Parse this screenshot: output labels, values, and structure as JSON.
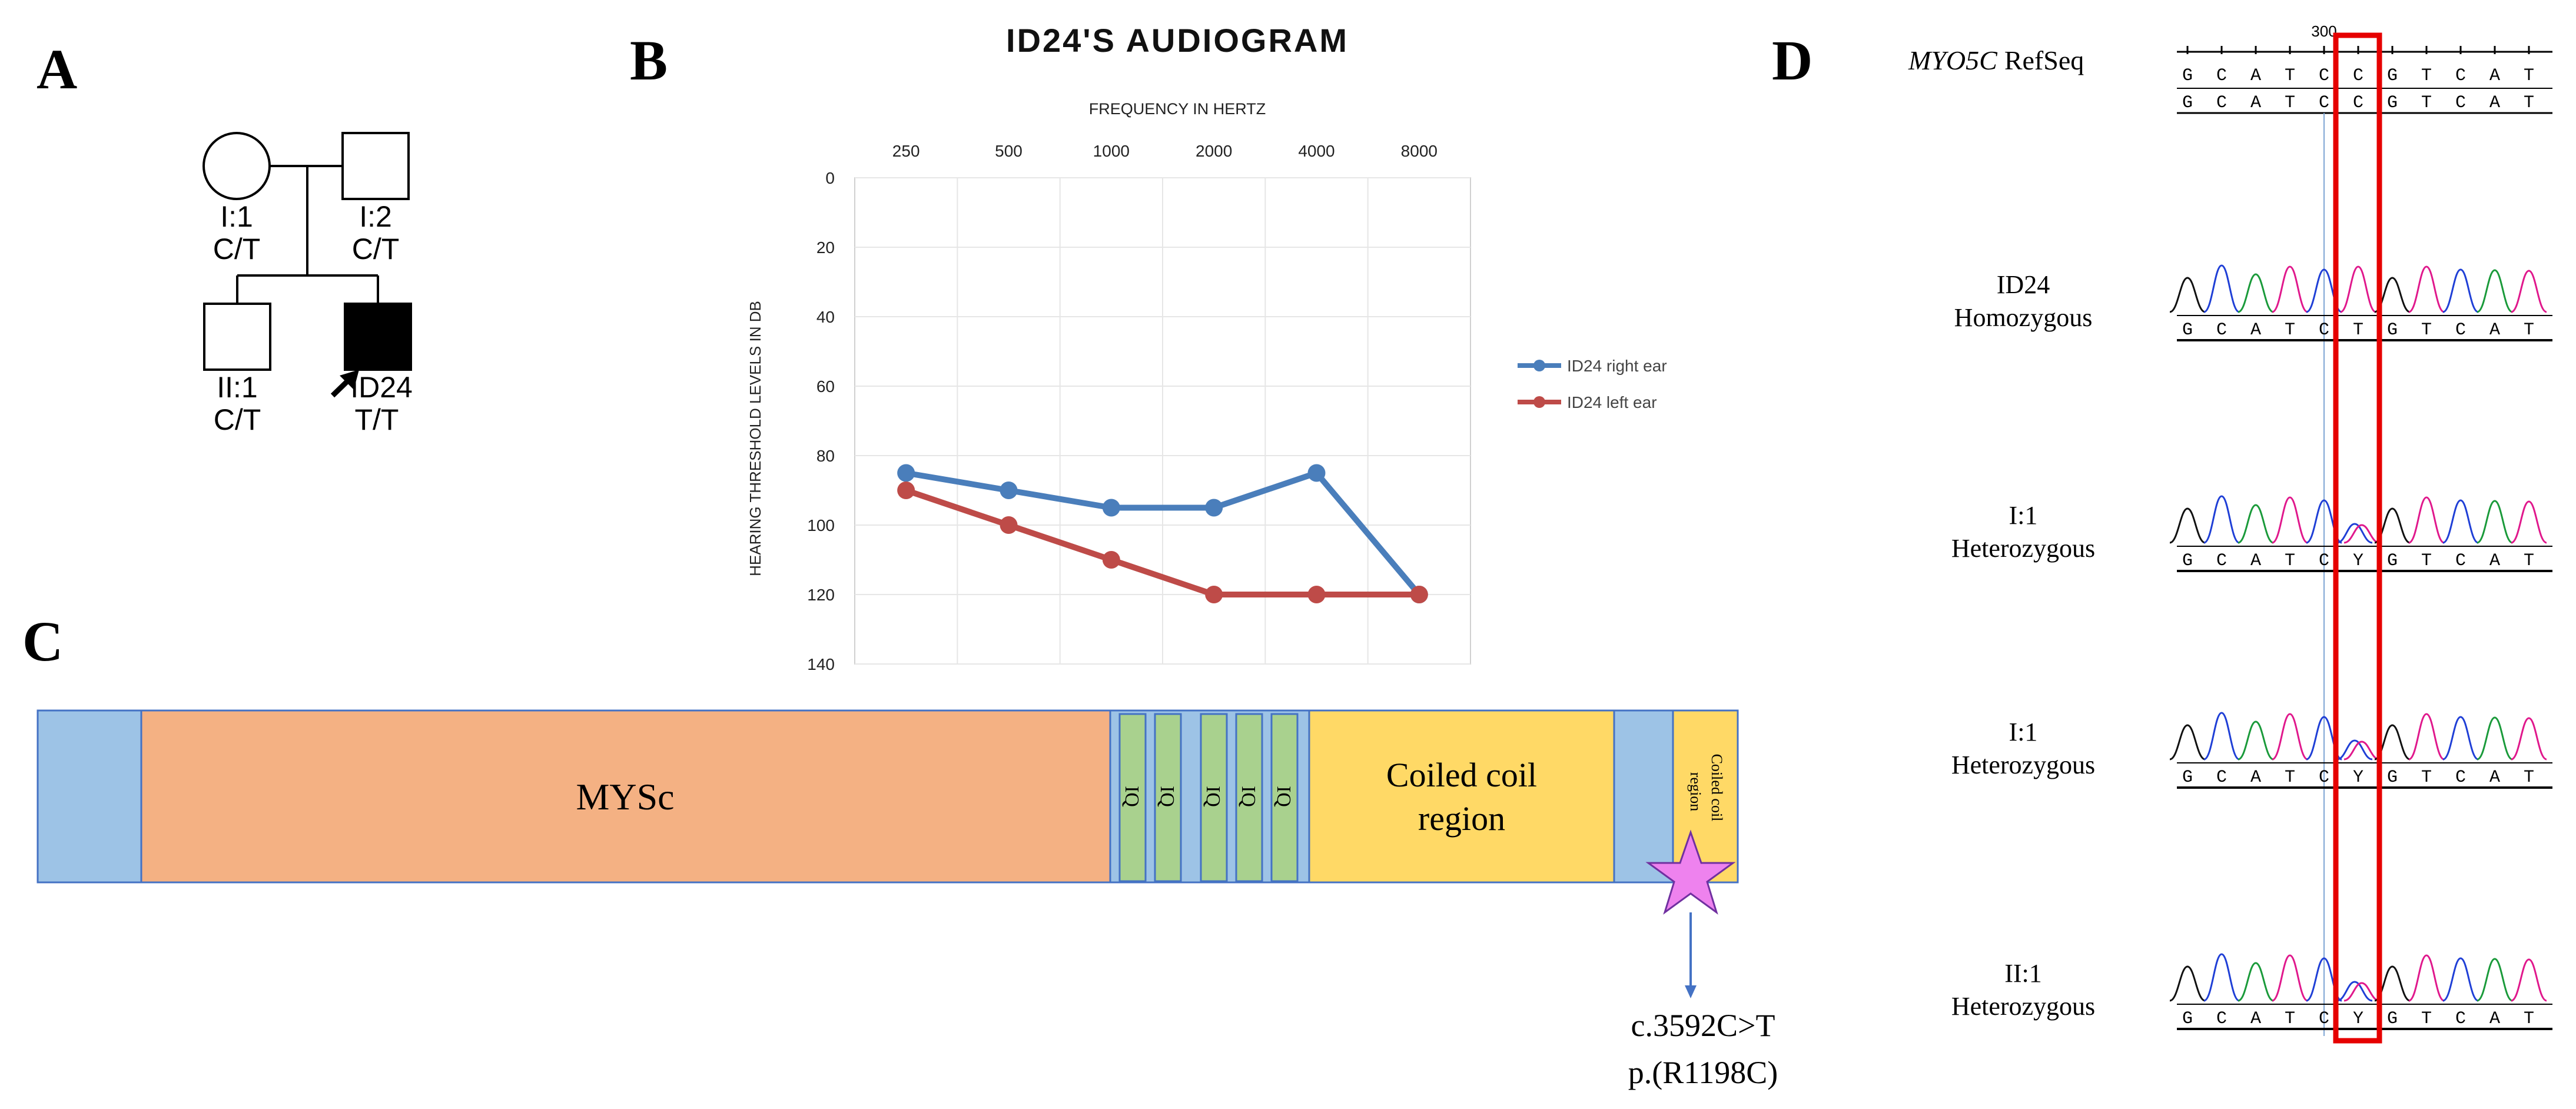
{
  "panels": {
    "A": {
      "label": "A",
      "individuals": [
        {
          "id": "I:1",
          "genotype": "C/T",
          "sex": "female",
          "affected": false
        },
        {
          "id": "I:2",
          "genotype": "C/T",
          "sex": "male",
          "affected": false
        },
        {
          "id": "II:1",
          "genotype": "C/T",
          "sex": "male",
          "affected": false
        },
        {
          "id": "ID24",
          "genotype": "T/T",
          "sex": "male",
          "affected": true,
          "proband": true
        }
      ]
    },
    "B": {
      "label": "B"
    },
    "C": {
      "label": "C",
      "domains": {
        "mysc": "MYSc",
        "iq": "IQ",
        "coiled_coil_1_line1": "Coiled coil",
        "coiled_coil_1_line2": "region",
        "coiled_coil_2_line1": "Coiled coil",
        "coiled_coil_2_line2": "region"
      },
      "variant_cdna": "c.3592C>T",
      "variant_protein": "p.(R1198C)",
      "colors": {
        "terminal": "#9dc3e6",
        "mysc": "#f4b183",
        "iq": "#a9d18e",
        "coiled": "#ffd966",
        "border": "#4472c4",
        "star": "#ee82ee"
      }
    },
    "D": {
      "label": "D",
      "refseq_gene": "MYO5C",
      "refseq_suffix": "RefSeq",
      "position_label": "300",
      "ref_sequence": [
        "G",
        "C",
        "A",
        "T",
        "C",
        "C",
        "G",
        "T",
        "C",
        "A",
        "T"
      ],
      "samples": [
        {
          "name": "ID24",
          "status": "Homozygous",
          "bases": [
            "G",
            "C",
            "A",
            "T",
            "C",
            "T",
            "G",
            "T",
            "C",
            "A",
            "T"
          ]
        },
        {
          "name": "I:1",
          "status": "Heterozygous",
          "bases": [
            "G",
            "C",
            "A",
            "T",
            "C",
            "Y",
            "G",
            "T",
            "C",
            "A",
            "T"
          ]
        },
        {
          "name": "I:1",
          "status": "Heterozygous",
          "bases": [
            "G",
            "C",
            "A",
            "T",
            "C",
            "Y",
            "G",
            "T",
            "C",
            "A",
            "T"
          ]
        },
        {
          "name": "II:1",
          "status": "Heterozygous",
          "bases": [
            "G",
            "C",
            "A",
            "T",
            "C",
            "Y",
            "G",
            "T",
            "C",
            "A",
            "T"
          ]
        }
      ],
      "highlight_color": "#e60000"
    }
  },
  "chart_data": {
    "type": "line",
    "title": "ID24'S AUDIOGRAM",
    "xlabel": "FREQUENCY IN HERTZ",
    "ylabel": "HEARING THRESHOLD LEVELS IN DB",
    "categories": [
      "250",
      "500",
      "1000",
      "2000",
      "4000",
      "8000"
    ],
    "y_ticks": [
      "0",
      "20",
      "40",
      "60",
      "80",
      "100",
      "120",
      "140"
    ],
    "ylim": [
      0,
      140
    ],
    "y_inverted": true,
    "x_axis_position": "top",
    "legend_position": "right",
    "grid": true,
    "series": [
      {
        "name": "ID24 right ear",
        "color": "#4a7ebb",
        "values": [
          85,
          90,
          95,
          95,
          85,
          120
        ]
      },
      {
        "name": "ID24 left ear",
        "color": "#be4b48",
        "values": [
          90,
          100,
          110,
          120,
          120,
          120
        ]
      }
    ]
  }
}
